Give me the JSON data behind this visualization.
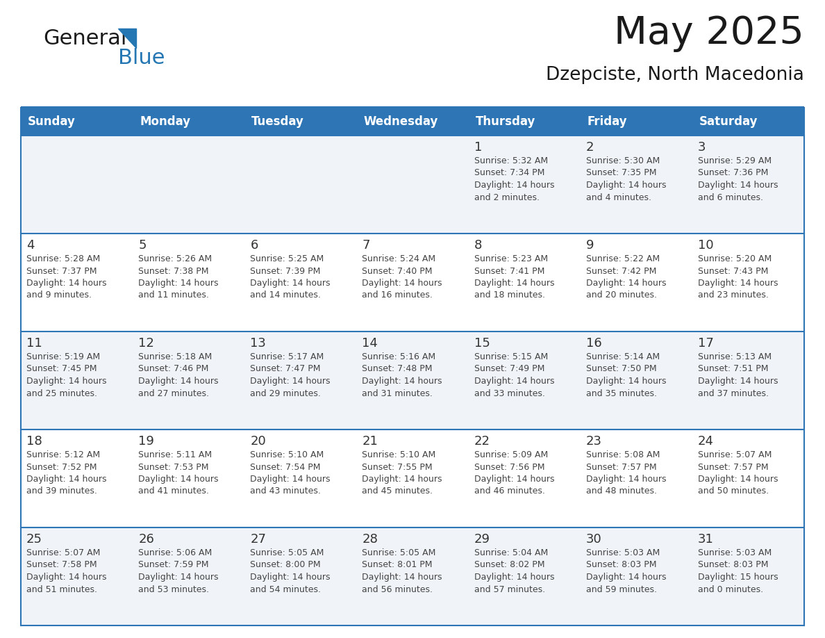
{
  "title": "May 2025",
  "subtitle": "Dzepciste, North Macedonia",
  "days_of_week": [
    "Sunday",
    "Monday",
    "Tuesday",
    "Wednesday",
    "Thursday",
    "Friday",
    "Saturday"
  ],
  "header_bg": "#2E75B6",
  "header_text": "#FFFFFF",
  "row_bg_odd": "#FFFFFF",
  "row_bg_even": "#F0F4F8",
  "cell_border_color": "#2E75B6",
  "row_border_color": "#2E75B6",
  "text_color": "#333333",
  "day_number_color": "#333333",
  "info_text_color": "#444444",
  "background": "#FFFFFF",
  "logo_general_color": "#1a1a1a",
  "logo_blue_color": "#2477B3",
  "logo_triangle_color": "#2477B3",
  "calendar_data": [
    [
      {
        "day": null,
        "info": ""
      },
      {
        "day": null,
        "info": ""
      },
      {
        "day": null,
        "info": ""
      },
      {
        "day": null,
        "info": ""
      },
      {
        "day": 1,
        "info": "Sunrise: 5:32 AM\nSunset: 7:34 PM\nDaylight: 14 hours\nand 2 minutes."
      },
      {
        "day": 2,
        "info": "Sunrise: 5:30 AM\nSunset: 7:35 PM\nDaylight: 14 hours\nand 4 minutes."
      },
      {
        "day": 3,
        "info": "Sunrise: 5:29 AM\nSunset: 7:36 PM\nDaylight: 14 hours\nand 6 minutes."
      }
    ],
    [
      {
        "day": 4,
        "info": "Sunrise: 5:28 AM\nSunset: 7:37 PM\nDaylight: 14 hours\nand 9 minutes."
      },
      {
        "day": 5,
        "info": "Sunrise: 5:26 AM\nSunset: 7:38 PM\nDaylight: 14 hours\nand 11 minutes."
      },
      {
        "day": 6,
        "info": "Sunrise: 5:25 AM\nSunset: 7:39 PM\nDaylight: 14 hours\nand 14 minutes."
      },
      {
        "day": 7,
        "info": "Sunrise: 5:24 AM\nSunset: 7:40 PM\nDaylight: 14 hours\nand 16 minutes."
      },
      {
        "day": 8,
        "info": "Sunrise: 5:23 AM\nSunset: 7:41 PM\nDaylight: 14 hours\nand 18 minutes."
      },
      {
        "day": 9,
        "info": "Sunrise: 5:22 AM\nSunset: 7:42 PM\nDaylight: 14 hours\nand 20 minutes."
      },
      {
        "day": 10,
        "info": "Sunrise: 5:20 AM\nSunset: 7:43 PM\nDaylight: 14 hours\nand 23 minutes."
      }
    ],
    [
      {
        "day": 11,
        "info": "Sunrise: 5:19 AM\nSunset: 7:45 PM\nDaylight: 14 hours\nand 25 minutes."
      },
      {
        "day": 12,
        "info": "Sunrise: 5:18 AM\nSunset: 7:46 PM\nDaylight: 14 hours\nand 27 minutes."
      },
      {
        "day": 13,
        "info": "Sunrise: 5:17 AM\nSunset: 7:47 PM\nDaylight: 14 hours\nand 29 minutes."
      },
      {
        "day": 14,
        "info": "Sunrise: 5:16 AM\nSunset: 7:48 PM\nDaylight: 14 hours\nand 31 minutes."
      },
      {
        "day": 15,
        "info": "Sunrise: 5:15 AM\nSunset: 7:49 PM\nDaylight: 14 hours\nand 33 minutes."
      },
      {
        "day": 16,
        "info": "Sunrise: 5:14 AM\nSunset: 7:50 PM\nDaylight: 14 hours\nand 35 minutes."
      },
      {
        "day": 17,
        "info": "Sunrise: 5:13 AM\nSunset: 7:51 PM\nDaylight: 14 hours\nand 37 minutes."
      }
    ],
    [
      {
        "day": 18,
        "info": "Sunrise: 5:12 AM\nSunset: 7:52 PM\nDaylight: 14 hours\nand 39 minutes."
      },
      {
        "day": 19,
        "info": "Sunrise: 5:11 AM\nSunset: 7:53 PM\nDaylight: 14 hours\nand 41 minutes."
      },
      {
        "day": 20,
        "info": "Sunrise: 5:10 AM\nSunset: 7:54 PM\nDaylight: 14 hours\nand 43 minutes."
      },
      {
        "day": 21,
        "info": "Sunrise: 5:10 AM\nSunset: 7:55 PM\nDaylight: 14 hours\nand 45 minutes."
      },
      {
        "day": 22,
        "info": "Sunrise: 5:09 AM\nSunset: 7:56 PM\nDaylight: 14 hours\nand 46 minutes."
      },
      {
        "day": 23,
        "info": "Sunrise: 5:08 AM\nSunset: 7:57 PM\nDaylight: 14 hours\nand 48 minutes."
      },
      {
        "day": 24,
        "info": "Sunrise: 5:07 AM\nSunset: 7:57 PM\nDaylight: 14 hours\nand 50 minutes."
      }
    ],
    [
      {
        "day": 25,
        "info": "Sunrise: 5:07 AM\nSunset: 7:58 PM\nDaylight: 14 hours\nand 51 minutes."
      },
      {
        "day": 26,
        "info": "Sunrise: 5:06 AM\nSunset: 7:59 PM\nDaylight: 14 hours\nand 53 minutes."
      },
      {
        "day": 27,
        "info": "Sunrise: 5:05 AM\nSunset: 8:00 PM\nDaylight: 14 hours\nand 54 minutes."
      },
      {
        "day": 28,
        "info": "Sunrise: 5:05 AM\nSunset: 8:01 PM\nDaylight: 14 hours\nand 56 minutes."
      },
      {
        "day": 29,
        "info": "Sunrise: 5:04 AM\nSunset: 8:02 PM\nDaylight: 14 hours\nand 57 minutes."
      },
      {
        "day": 30,
        "info": "Sunrise: 5:03 AM\nSunset: 8:03 PM\nDaylight: 14 hours\nand 59 minutes."
      },
      {
        "day": 31,
        "info": "Sunrise: 5:03 AM\nSunset: 8:03 PM\nDaylight: 15 hours\nand 0 minutes."
      }
    ]
  ]
}
